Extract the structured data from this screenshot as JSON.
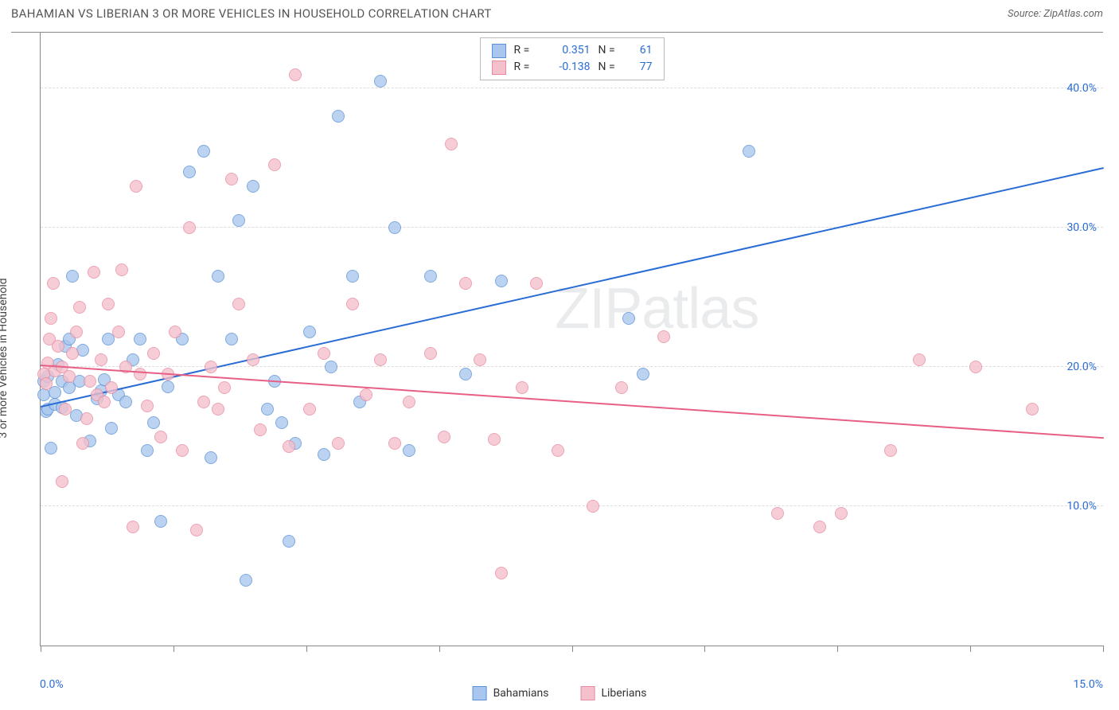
{
  "title": "BAHAMIAN VS LIBERIAN 3 OR MORE VEHICLES IN HOUSEHOLD CORRELATION CHART",
  "source": "Source: ZipAtlas.com",
  "watermark": "ZIPatlas",
  "chart": {
    "type": "scatter",
    "ylabel": "3 or more Vehicles in Household",
    "xlim": [
      0,
      15
    ],
    "ylim": [
      0,
      44
    ],
    "x_ticks_pct": [
      0,
      12.5,
      25,
      37.5,
      50,
      62.5,
      75,
      87.5,
      100
    ],
    "x_start_label": "0.0%",
    "x_end_label": "15.0%",
    "y_gridlines": [
      10,
      20,
      30,
      40
    ],
    "y_tick_labels": [
      "10.0%",
      "20.0%",
      "30.0%",
      "40.0%"
    ],
    "axis_label_color": "#2a6cd6",
    "grid_color": "#dddddd",
    "background": "#ffffff",
    "marker_radius": 8,
    "series": [
      {
        "name": "Bahamians",
        "fill": "#a9c7ee",
        "stroke": "#5c91d6",
        "line_color": "#2a6cd6",
        "R": "0.351",
        "N": "61",
        "trend": {
          "x1": 0,
          "y1": 17.2,
          "x2": 15,
          "y2": 34.3
        },
        "points": [
          [
            0.05,
            19.0
          ],
          [
            0.05,
            18.0
          ],
          [
            0.08,
            16.8
          ],
          [
            0.1,
            17.0
          ],
          [
            0.1,
            19.3
          ],
          [
            0.15,
            14.2
          ],
          [
            0.2,
            18.2
          ],
          [
            0.2,
            17.3
          ],
          [
            0.25,
            20.2
          ],
          [
            0.3,
            19.0
          ],
          [
            0.3,
            17.1
          ],
          [
            0.35,
            21.5
          ],
          [
            0.4,
            18.5
          ],
          [
            0.4,
            22.0
          ],
          [
            0.45,
            26.5
          ],
          [
            0.5,
            16.5
          ],
          [
            0.55,
            19.0
          ],
          [
            0.6,
            21.2
          ],
          [
            0.7,
            14.7
          ],
          [
            0.8,
            17.7
          ],
          [
            0.85,
            18.3
          ],
          [
            0.9,
            19.1
          ],
          [
            0.95,
            22.0
          ],
          [
            1.0,
            15.6
          ],
          [
            1.1,
            18.0
          ],
          [
            1.2,
            17.5
          ],
          [
            1.3,
            20.5
          ],
          [
            1.4,
            22.0
          ],
          [
            1.5,
            14.0
          ],
          [
            1.6,
            16.0
          ],
          [
            1.7,
            8.9
          ],
          [
            1.8,
            18.6
          ],
          [
            2.0,
            22.0
          ],
          [
            2.1,
            34.0
          ],
          [
            2.3,
            35.5
          ],
          [
            2.4,
            13.5
          ],
          [
            2.5,
            26.5
          ],
          [
            2.7,
            22.0
          ],
          [
            2.8,
            30.5
          ],
          [
            2.9,
            4.7
          ],
          [
            3.0,
            33.0
          ],
          [
            3.2,
            17.0
          ],
          [
            3.3,
            19.0
          ],
          [
            3.4,
            16.0
          ],
          [
            3.5,
            7.5
          ],
          [
            3.6,
            14.5
          ],
          [
            3.8,
            22.5
          ],
          [
            4.0,
            13.7
          ],
          [
            4.1,
            20.0
          ],
          [
            4.2,
            38.0
          ],
          [
            4.4,
            26.5
          ],
          [
            4.5,
            17.5
          ],
          [
            4.8,
            40.5
          ],
          [
            5.0,
            30.0
          ],
          [
            5.2,
            14.0
          ],
          [
            5.5,
            26.5
          ],
          [
            6.0,
            19.5
          ],
          [
            6.5,
            26.2
          ],
          [
            8.3,
            23.5
          ],
          [
            8.5,
            19.5
          ],
          [
            10.0,
            35.5
          ]
        ]
      },
      {
        "name": "Liberians",
        "fill": "#f4c0cb",
        "stroke": "#e88aa0",
        "line_color": "#e85f86",
        "R": "-0.138",
        "N": "77",
        "trend": {
          "x1": 0,
          "y1": 20.2,
          "x2": 15,
          "y2": 15.0
        },
        "points": [
          [
            0.05,
            19.5
          ],
          [
            0.08,
            18.8
          ],
          [
            0.1,
            20.3
          ],
          [
            0.12,
            22.0
          ],
          [
            0.15,
            23.5
          ],
          [
            0.18,
            26.0
          ],
          [
            0.2,
            19.7
          ],
          [
            0.25,
            21.5
          ],
          [
            0.3,
            20.0
          ],
          [
            0.3,
            11.8
          ],
          [
            0.35,
            17.0
          ],
          [
            0.4,
            19.3
          ],
          [
            0.45,
            21.0
          ],
          [
            0.5,
            22.5
          ],
          [
            0.55,
            24.3
          ],
          [
            0.6,
            14.5
          ],
          [
            0.65,
            16.3
          ],
          [
            0.7,
            19.0
          ],
          [
            0.75,
            26.8
          ],
          [
            0.8,
            18.0
          ],
          [
            0.85,
            20.5
          ],
          [
            0.9,
            17.5
          ],
          [
            0.95,
            24.5
          ],
          [
            1.0,
            18.5
          ],
          [
            1.1,
            22.5
          ],
          [
            1.15,
            27.0
          ],
          [
            1.2,
            20.0
          ],
          [
            1.3,
            8.5
          ],
          [
            1.35,
            33.0
          ],
          [
            1.4,
            19.5
          ],
          [
            1.5,
            17.2
          ],
          [
            1.6,
            21.0
          ],
          [
            1.7,
            15.0
          ],
          [
            1.8,
            19.5
          ],
          [
            1.9,
            22.5
          ],
          [
            2.0,
            14.0
          ],
          [
            2.1,
            30.0
          ],
          [
            2.2,
            8.3
          ],
          [
            2.3,
            17.5
          ],
          [
            2.4,
            20.0
          ],
          [
            2.5,
            17.0
          ],
          [
            2.6,
            18.5
          ],
          [
            2.7,
            33.5
          ],
          [
            2.8,
            24.5
          ],
          [
            3.0,
            20.5
          ],
          [
            3.1,
            15.5
          ],
          [
            3.3,
            34.5
          ],
          [
            3.5,
            14.3
          ],
          [
            3.6,
            41.0
          ],
          [
            3.8,
            17.0
          ],
          [
            4.0,
            21.0
          ],
          [
            4.2,
            14.5
          ],
          [
            4.4,
            24.5
          ],
          [
            4.6,
            18.0
          ],
          [
            4.8,
            20.5
          ],
          [
            5.0,
            14.5
          ],
          [
            5.2,
            17.5
          ],
          [
            5.5,
            21.0
          ],
          [
            5.7,
            15.0
          ],
          [
            5.8,
            36.0
          ],
          [
            6.0,
            26.0
          ],
          [
            6.2,
            20.5
          ],
          [
            6.4,
            14.8
          ],
          [
            6.5,
            5.2
          ],
          [
            6.8,
            18.5
          ],
          [
            7.0,
            26.0
          ],
          [
            7.3,
            14.0
          ],
          [
            7.8,
            10.0
          ],
          [
            8.2,
            18.5
          ],
          [
            8.8,
            22.2
          ],
          [
            10.4,
            9.5
          ],
          [
            11.0,
            8.5
          ],
          [
            11.3,
            9.5
          ],
          [
            12.0,
            14.0
          ],
          [
            12.4,
            20.5
          ],
          [
            13.2,
            20.0
          ],
          [
            14.0,
            17.0
          ]
        ]
      }
    ]
  },
  "bottom_legend": [
    "Bahamians",
    "Liberians"
  ]
}
